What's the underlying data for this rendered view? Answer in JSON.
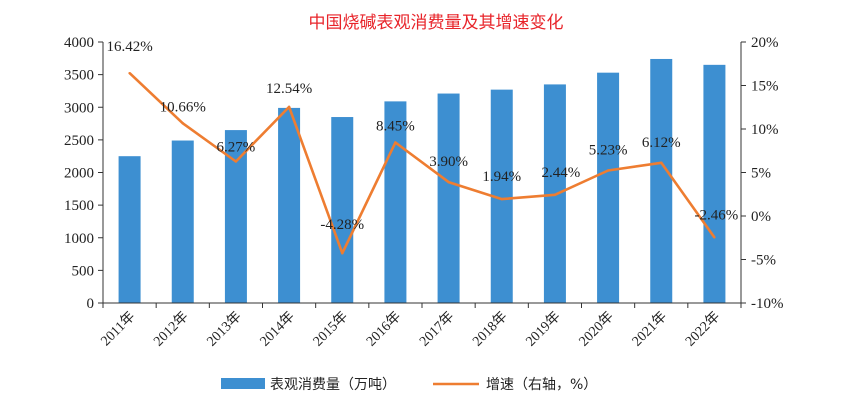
{
  "chart_data": {
    "type": "bar",
    "title": "中国烧碱表观消费量及其增速变化",
    "categories": [
      "2011年",
      "2012年",
      "2013年",
      "2014年",
      "2015年",
      "2016年",
      "2017年",
      "2018年",
      "2019年",
      "2020年",
      "2021年",
      "2022年"
    ],
    "series": [
      {
        "name": "表观消费量（万吨）",
        "type": "bar",
        "axis": "left",
        "color": "#3d8fd1",
        "values": [
          2250,
          2490,
          2650,
          2990,
          2850,
          3090,
          3210,
          3270,
          3350,
          3530,
          3740,
          3650
        ]
      },
      {
        "name": "增速（右轴，%）",
        "type": "line",
        "axis": "right",
        "color": "#ee7d31",
        "values": [
          16.42,
          10.66,
          6.27,
          12.54,
          -4.28,
          8.45,
          3.9,
          1.94,
          2.44,
          5.23,
          6.12,
          -2.46
        ],
        "labels": [
          "16.42%",
          "10.66%",
          "6.27%",
          "12.54%",
          "-4.28%",
          "8.45%",
          "3.90%",
          "1.94%",
          "2.44%",
          "5.23%",
          "6.12%",
          "-2.46%"
        ]
      }
    ],
    "yleft": {
      "ylim": [
        0,
        4000
      ],
      "ticks": [
        0,
        500,
        1000,
        1500,
        2000,
        2500,
        3000,
        3500,
        4000
      ]
    },
    "yright": {
      "ylim": [
        -10,
        20
      ],
      "ticks": [
        -10,
        -5,
        0,
        5,
        10,
        15,
        20
      ],
      "tick_labels": [
        "-10%",
        "-5%",
        "0%",
        "5%",
        "10%",
        "15%",
        "20%"
      ]
    },
    "legend": {
      "position": "bottom"
    },
    "grid": false
  }
}
